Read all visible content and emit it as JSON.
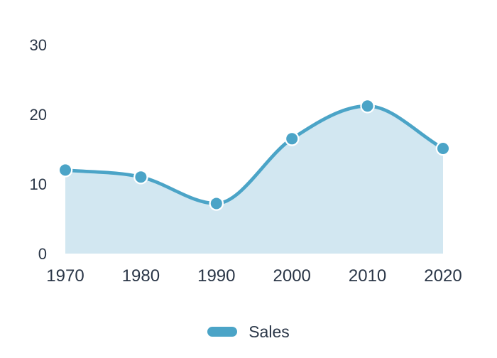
{
  "chart_data": {
    "type": "area",
    "categories": [
      "1970",
      "1980",
      "1990",
      "2000",
      "2010",
      "2020"
    ],
    "series": [
      {
        "name": "Sales",
        "values": [
          12,
          11,
          7.2,
          16.5,
          21.2,
          15.1
        ]
      }
    ],
    "y_ticks": [
      0,
      10,
      20,
      30
    ],
    "ylim": [
      0,
      30
    ],
    "grid": false,
    "legend_position": "bottom",
    "curve": "monotone",
    "point_style": "circle"
  },
  "legend": {
    "items": [
      {
        "label": "Sales"
      }
    ]
  },
  "colors": {
    "accent": "#4ba4c7",
    "area_fill": "#d2e7f1",
    "text": "#2a3647",
    "point_border": "#ffffff",
    "background": "#ffffff"
  }
}
